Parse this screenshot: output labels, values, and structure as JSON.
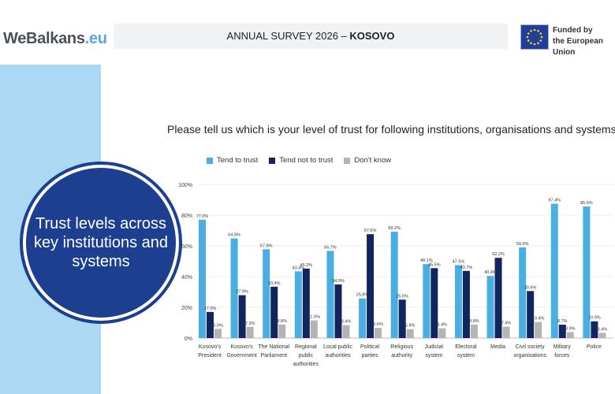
{
  "header": {
    "logo_main": "WeBalkans",
    "logo_tld": ".eu",
    "title_prefix": "ANNUAL SURVEY 2026 – ",
    "title_country": "KOSOVO",
    "funded_line1": "Funded by",
    "funded_line2": "the European Union"
  },
  "sidebar": {
    "circle_text": "Trust levels across key institutions and systems"
  },
  "colors": {
    "trust": "#4aaee0",
    "not_trust": "#13255e",
    "dont_know": "#b4b4b4",
    "sidebar": "#abd9f3",
    "circle": "#1d3f8f"
  },
  "chart_data": {
    "type": "bar",
    "title": "Please tell us which is your level of trust for following institutions, organisations and systems",
    "ylim": [
      0,
      100
    ],
    "yticks": [
      "0%",
      "20%",
      "40%",
      "60%",
      "80%",
      "100%"
    ],
    "grid": true,
    "legend": "top-left",
    "categories": [
      [
        "Kosovo's",
        "President"
      ],
      [
        "Kosovo's",
        "Government"
      ],
      [
        "The National",
        "Parliament"
      ],
      [
        "Regional",
        "public",
        "authorities"
      ],
      [
        "Local public",
        "authorities"
      ],
      [
        "Political",
        "parties"
      ],
      [
        "Religious",
        "authority"
      ],
      [
        "Judicial",
        "system"
      ],
      [
        "Electoral",
        "system"
      ],
      [
        "Media"
      ],
      [
        "Civil society",
        "organisations"
      ],
      [
        "Military",
        "forces"
      ],
      [
        "Police"
      ]
    ],
    "series": [
      {
        "name": "Tend to trust",
        "values": [
          77.0,
          64.8,
          57.8,
          43.4,
          56.7,
          25.8,
          69.2,
          48.1,
          47.5,
          40.4,
          59.0,
          87.4,
          85.6
        ],
        "labels": [
          "77.0%",
          "64.8%",
          "57.8%",
          "43.4%",
          "56.7%",
          "25.8%",
          "69.2%",
          "48.1%",
          "47.5%",
          "40.4%",
          "59.0%",
          "87.4%",
          "85.6%"
        ]
      },
      {
        "name": "Tend not to trust",
        "values": [
          17.0,
          27.9,
          33.4,
          45.2,
          34.9,
          67.6,
          25.0,
          45.5,
          43.7,
          52.2,
          30.6,
          8.7,
          10.9
        ],
        "labels": [
          "17.0%",
          "27.9%",
          "33.4%",
          "45.2%",
          "34.9%",
          "67.6%",
          "25.0%",
          "45.5%",
          "43.7%",
          "52.2%",
          "30.6%",
          "8.7%",
          "10.9%"
        ]
      },
      {
        "name": "Don't know",
        "values": [
          6.0,
          7.3,
          8.8,
          11.5,
          8.4,
          6.6,
          5.8,
          6.4,
          8.8,
          7.4,
          10.4,
          3.9,
          3.4
        ],
        "labels": [
          "6.0%",
          "7.3%",
          "8.8%",
          "11.5%",
          "8.4%",
          "6.6%",
          "5.8%",
          "6.4%",
          "8.8%",
          "7.4%",
          "10.4%",
          "3.9%",
          "3.4%"
        ]
      }
    ]
  }
}
